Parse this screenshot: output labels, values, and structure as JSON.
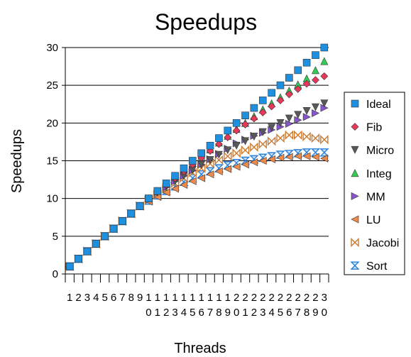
{
  "chart_data": {
    "type": "scatter",
    "title": "Speedups",
    "xlabel": "Threads",
    "ylabel": "Speedups",
    "ylim": [
      0,
      30
    ],
    "yticks": [
      0,
      5,
      10,
      15,
      20,
      25,
      30
    ],
    "grid": "horizontal",
    "legend_position": "right",
    "x": [
      1,
      2,
      3,
      4,
      5,
      6,
      7,
      8,
      9,
      10,
      11,
      12,
      13,
      14,
      15,
      16,
      17,
      18,
      19,
      20,
      21,
      22,
      23,
      24,
      25,
      26,
      27,
      28,
      29,
      30
    ],
    "series": [
      {
        "name": "Ideal",
        "marker": "square",
        "color": "#1f8fe0",
        "values": [
          1,
          2,
          3,
          4,
          5,
          6,
          7,
          8,
          9,
          10,
          11,
          12,
          13,
          14,
          15,
          16,
          17,
          18,
          19,
          20,
          21,
          22,
          23,
          24,
          25,
          26,
          27,
          28,
          29,
          30
        ]
      },
      {
        "name": "Fib",
        "marker": "diamond",
        "color": "#e8385a",
        "values": [
          1,
          2,
          3,
          4,
          5,
          6,
          7,
          8,
          9,
          10,
          10.9,
          11.8,
          12.7,
          13.6,
          14.5,
          15.4,
          16.3,
          17.2,
          18.1,
          19,
          19.8,
          20.6,
          21.4,
          22.2,
          23,
          23.8,
          24.5,
          25.2,
          25.7,
          26.2
        ]
      },
      {
        "name": "Micro",
        "marker": "triangle-down",
        "color": "#595959",
        "values": [
          1,
          2,
          3,
          4,
          5,
          6,
          7,
          8,
          9,
          10,
          10.8,
          11.6,
          12.3,
          13,
          13.8,
          14.5,
          15.1,
          15.8,
          16.4,
          17,
          17.6,
          18.2,
          18.8,
          19.4,
          20,
          20.6,
          21.1,
          21.6,
          22.1,
          22.6
        ]
      },
      {
        "name": "Integ",
        "marker": "triangle-up",
        "color": "#33cc55",
        "values": [
          1,
          2,
          3,
          4,
          5,
          6,
          7,
          8,
          9,
          10,
          11,
          12,
          12.9,
          13.8,
          14.7,
          15.6,
          16.5,
          17.4,
          18.3,
          19.2,
          20,
          20.9,
          21.8,
          22.6,
          23.4,
          24.3,
          25.1,
          25.9,
          27,
          28.2
        ]
      },
      {
        "name": "MM",
        "marker": "triangle-right",
        "color": "#8855cc",
        "values": [
          1,
          2,
          3,
          4,
          5,
          6,
          7,
          8,
          9,
          10,
          10.8,
          11.5,
          12.3,
          13,
          13.7,
          14.5,
          15.2,
          15.9,
          16.6,
          17.3,
          17.8,
          18.3,
          18.7,
          19.1,
          19.5,
          19.9,
          20.4,
          20.8,
          21.3,
          22
        ]
      },
      {
        "name": "LU",
        "marker": "triangle-left",
        "color": "#f08a4b",
        "values": [
          1,
          2,
          3,
          4,
          5,
          6,
          7,
          8,
          9,
          9.6,
          10.2,
          10.8,
          11.3,
          11.8,
          12.3,
          12.7,
          13.2,
          13.6,
          13.9,
          14.2,
          14.5,
          14.8,
          15,
          15.2,
          15.4,
          15.5,
          15.6,
          15.6,
          15.5,
          15.3
        ]
      },
      {
        "name": "Jacobi",
        "marker": "bowtie",
        "color": "#cc7a30",
        "values": [
          1,
          2,
          3,
          4,
          5,
          6,
          7,
          8,
          9,
          9.8,
          10.5,
          11.3,
          12,
          12.7,
          13.4,
          14,
          14.6,
          15.1,
          15.6,
          16,
          16.4,
          16.8,
          17.2,
          17.6,
          18,
          18.4,
          18.4,
          18.2,
          18,
          17.8
        ]
      },
      {
        "name": "Sort",
        "marker": "hourglass",
        "color": "#2a80d8",
        "values": [
          1,
          2,
          3,
          4,
          5,
          6,
          7,
          8,
          9,
          9.7,
          10.4,
          11,
          11.6,
          12.2,
          12.7,
          13.2,
          13.6,
          14,
          14.4,
          14.7,
          15,
          15.2,
          15.4,
          15.6,
          15.8,
          15.9,
          16,
          16.1,
          16.1,
          16.1
        ]
      }
    ]
  }
}
